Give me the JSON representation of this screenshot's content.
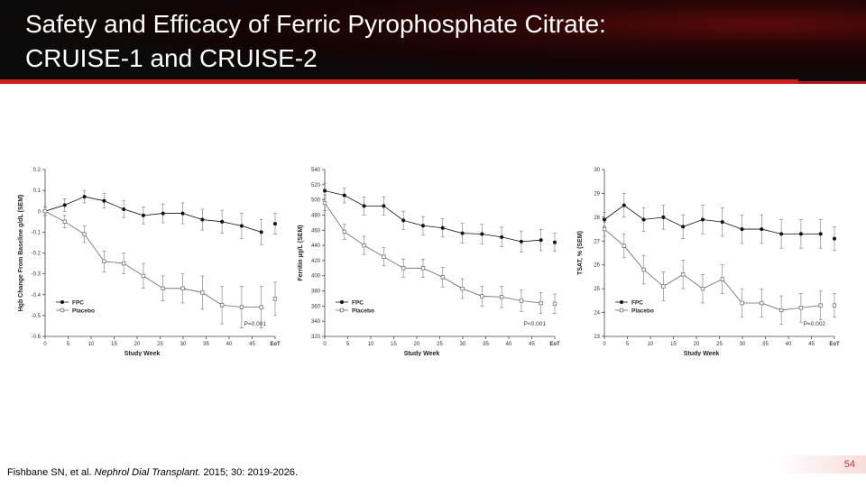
{
  "slide": {
    "title_line1": "Safety and Efficacy of Ferric Pyrophosphate Citrate:",
    "title_line2": "CRUISE-1 and CRUISE-2",
    "citation_authors": "Fishbane SN, et al. ",
    "citation_journal": "Nephrol Dial Transplant.",
    "citation_details": " 2015; 30: 2019-2026.",
    "page_number": "54"
  },
  "colors": {
    "accent_red": "#cc1c1c",
    "fpc": "#000000",
    "placebo": "#666666"
  },
  "chart_data": [
    {
      "type": "line",
      "title": "",
      "xlabel": "Study Week",
      "ylabel": "Hgb Change From Baseline g/dL (SEM)",
      "xticks": [
        "0",
        "5",
        "10",
        "15",
        "20",
        "25",
        "30",
        "35",
        "40",
        "45",
        "EoT"
      ],
      "ylim": [
        -0.6,
        0.2
      ],
      "yticks": [
        "0.2",
        "0.1",
        "0",
        "-0.1",
        "-0.2",
        "-0.3",
        "-0.4",
        "-0.5",
        "-0.6"
      ],
      "series": [
        {
          "name": "FPC",
          "values": [
            0.0,
            0.03,
            0.07,
            0.05,
            0.01,
            -0.02,
            -0.01,
            -0.01,
            -0.04,
            -0.05,
            -0.07,
            -0.1
          ],
          "errors": [
            0.02,
            0.03,
            0.03,
            0.035,
            0.04,
            0.04,
            0.045,
            0.05,
            0.05,
            0.055,
            0.06,
            0.06
          ],
          "eot": -0.06,
          "eot_error": 0.05
        },
        {
          "name": "Placebo",
          "values": [
            0.0,
            -0.05,
            -0.11,
            -0.24,
            -0.25,
            -0.31,
            -0.37,
            -0.37,
            -0.39,
            -0.45,
            -0.46,
            -0.46
          ],
          "errors": [
            0.02,
            0.03,
            0.04,
            0.05,
            0.05,
            0.06,
            0.06,
            0.07,
            0.08,
            0.09,
            0.1,
            0.1
          ],
          "eot": -0.42,
          "eot_error": 0.08
        }
      ],
      "annotation": "P=0.001",
      "legend": "bottom-left"
    },
    {
      "type": "line",
      "title": "",
      "xlabel": "Study Week",
      "ylabel": "Ferritin µg/L (SEM)",
      "xticks": [
        "0",
        "5",
        "10",
        "15",
        "20",
        "25",
        "30",
        "35",
        "40",
        "45",
        "EoT"
      ],
      "ylim": [
        320,
        540
      ],
      "yticks": [
        "540",
        "520",
        "500",
        "480",
        "460",
        "440",
        "420",
        "400",
        "380",
        "360",
        "340",
        "320"
      ],
      "series": [
        {
          "name": "FPC",
          "values": [
            512,
            506,
            492,
            492,
            473,
            466,
            463,
            456,
            455,
            451,
            445,
            447
          ],
          "errors": [
            10,
            10,
            12,
            12,
            12,
            12,
            12,
            13,
            13,
            13,
            14,
            14
          ],
          "eot": 444,
          "eot_error": 12
        },
        {
          "name": "Placebo",
          "values": [
            496,
            458,
            440,
            425,
            410,
            410,
            398,
            383,
            373,
            372,
            367,
            364
          ],
          "errors": [
            10,
            10,
            12,
            12,
            12,
            12,
            13,
            13,
            13,
            14,
            14,
            14
          ],
          "eot": 363,
          "eot_error": 13
        }
      ],
      "annotation": "P<0.001",
      "legend": "bottom-left"
    },
    {
      "type": "line",
      "title": "",
      "xlabel": "Study Week",
      "ylabel": "TSAT, % (SEM)",
      "xticks": [
        "0",
        "5",
        "10",
        "15",
        "20",
        "25",
        "30",
        "35",
        "40",
        "45",
        "EoT"
      ],
      "ylim": [
        23,
        30
      ],
      "yticks": [
        "30",
        "29",
        "28",
        "27",
        "26",
        "25",
        "24",
        "23"
      ],
      "series": [
        {
          "name": "FPC",
          "values": [
            27.9,
            28.5,
            27.9,
            28.0,
            27.6,
            27.9,
            27.8,
            27.5,
            27.5,
            27.3,
            27.3,
            27.3
          ],
          "errors": [
            0.3,
            0.5,
            0.5,
            0.5,
            0.5,
            0.6,
            0.6,
            0.6,
            0.6,
            0.6,
            0.6,
            0.6
          ],
          "eot": 27.1,
          "eot_error": 0.5
        },
        {
          "name": "Placebo",
          "values": [
            27.5,
            26.8,
            25.8,
            25.1,
            25.6,
            25.0,
            25.4,
            24.4,
            24.4,
            24.1,
            24.2,
            24.3
          ],
          "errors": [
            0.3,
            0.5,
            0.6,
            0.6,
            0.6,
            0.6,
            0.6,
            0.6,
            0.6,
            0.6,
            0.6,
            0.6
          ],
          "eot": 24.3,
          "eot_error": 0.5
        }
      ],
      "annotation": "P=0.002",
      "legend": "bottom-left"
    }
  ]
}
